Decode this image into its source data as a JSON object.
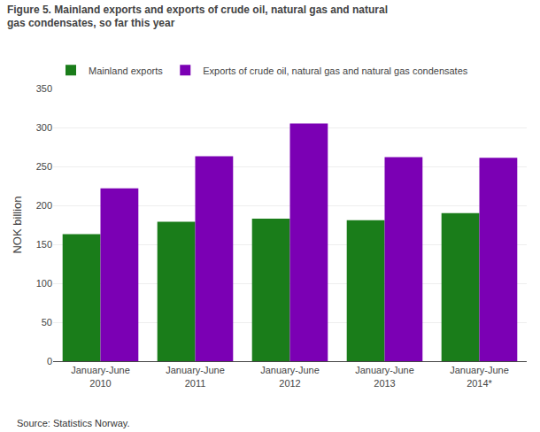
{
  "chart_data": {
    "type": "bar",
    "title": "Figure 5. Mainland exports and exports of crude oil, natural gas and natural\ngas condensates, so far this year",
    "ylabel": "NOK billion",
    "annotations": [
      "Source: Statistics Norway."
    ],
    "categories": [
      "January-June\n2010",
      "January-June\n2011",
      "January-June\n2012",
      "January-June\n2013",
      "January-June\n2014*"
    ],
    "series": [
      {
        "name": "Mainland exports",
        "color": "#1a7d1a",
        "values": [
          163,
          179,
          183,
          181,
          190
        ]
      },
      {
        "name": "Exports of crude oil, natural gas and natural gas condensates",
        "color": "#7B00B4",
        "values": [
          222,
          263,
          305,
          262,
          261
        ]
      }
    ],
    "ylim": [
      0,
      350
    ],
    "yticks": [
      0,
      50,
      100,
      150,
      200,
      250,
      300,
      350
    ],
    "grid": true,
    "legend": "upper left"
  }
}
